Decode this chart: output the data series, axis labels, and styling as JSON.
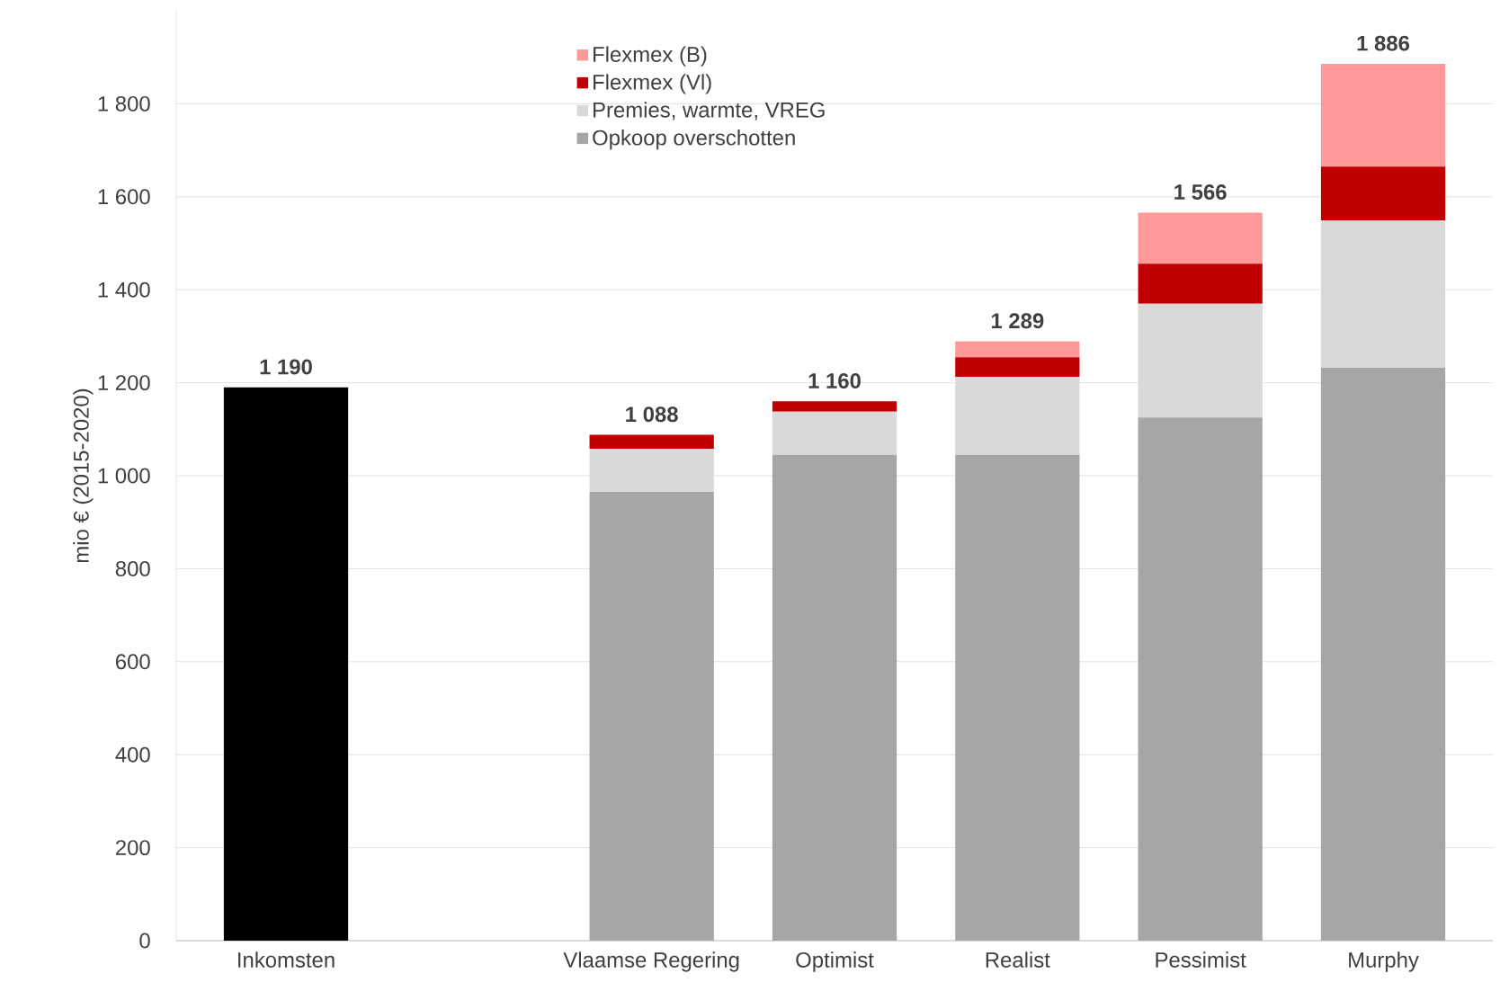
{
  "chart_data": {
    "type": "bar",
    "stacked": true,
    "ylabel": "mio € (2015-2020)",
    "categories": [
      "Inkomsten",
      null,
      "Vlaamse Regering",
      "Optimist",
      "Realist",
      "Pessimist",
      "Murphy"
    ],
    "series": [
      {
        "color": "#000000",
        "values": [
          1190,
          null,
          null,
          null,
          null,
          null,
          null
        ]
      },
      {
        "name": "Opkoop overschotten",
        "color": "#a6a6a6",
        "values": [
          null,
          null,
          965,
          1045,
          1045,
          1125,
          1232
        ]
      },
      {
        "name": "Premies, warmte, VREG",
        "color": "#d9d9d9",
        "values": [
          null,
          null,
          93,
          93,
          168,
          245,
          317
        ]
      },
      {
        "name": "Flexmex (Vl)",
        "color": "#c00000",
        "values": [
          null,
          null,
          30,
          22,
          42,
          86,
          116
        ]
      },
      {
        "name": "Flexmex (B)",
        "color": "#ff9999",
        "values": [
          null,
          null,
          0,
          0,
          34,
          110,
          221
        ]
      }
    ],
    "totals": [
      "1 190",
      null,
      "1 088",
      "1 160",
      "1 289",
      "1 566",
      "1 886"
    ],
    "ylim": [
      0,
      2000
    ],
    "yticks": [
      0,
      200,
      400,
      600,
      800,
      {
        "value": 1000,
        "label": "1 000"
      },
      {
        "value": 1200,
        "label": "1 200"
      },
      {
        "value": 1400,
        "label": "1 400"
      },
      {
        "value": 1600,
        "label": "1 600"
      },
      {
        "value": 1800,
        "label": "1 800"
      }
    ],
    "grid": "y",
    "legend": "top"
  }
}
